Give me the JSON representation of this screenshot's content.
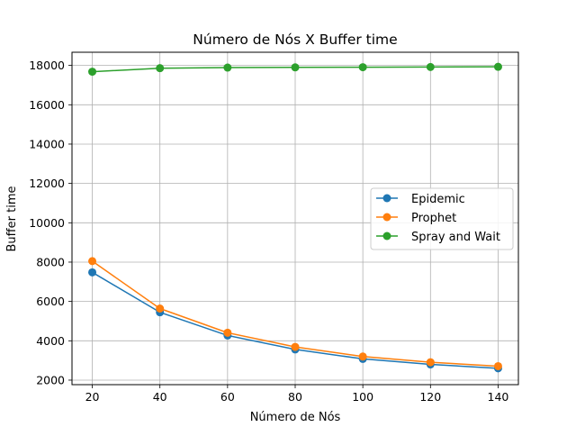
{
  "chart_data": {
    "type": "line",
    "title": "Número de Nós X Buffer time",
    "xlabel": "Número de Nós",
    "ylabel": "Buffer time",
    "x": [
      20,
      40,
      60,
      80,
      100,
      120,
      140
    ],
    "xticks": [
      20,
      40,
      60,
      80,
      100,
      120,
      140
    ],
    "yticks": [
      2000,
      4000,
      6000,
      8000,
      10000,
      12000,
      14000,
      16000,
      18000
    ],
    "xlim": [
      14,
      146
    ],
    "ylim": [
      1770,
      18670
    ],
    "grid": true,
    "legend_position": "center-right",
    "series": [
      {
        "name": "Epidemic",
        "color": "#1f77b4",
        "values": [
          7480,
          5450,
          4270,
          3560,
          3080,
          2800,
          2600
        ]
      },
      {
        "name": "Prophet",
        "color": "#ff7f0e",
        "values": [
          8050,
          5640,
          4410,
          3690,
          3200,
          2910,
          2710
        ]
      },
      {
        "name": "Spray and Wait",
        "color": "#2ca02c",
        "values": [
          17680,
          17860,
          17890,
          17900,
          17910,
          17920,
          17930
        ]
      }
    ]
  }
}
